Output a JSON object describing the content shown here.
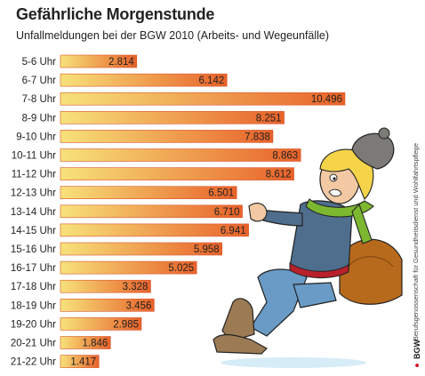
{
  "chart_data": {
    "type": "bar",
    "orientation": "horizontal",
    "title": "Gefährliche Morgenstunde",
    "subtitle": "Unfallmeldungen bei der BGW 2010 (Arbeits- und Wegeunfälle)",
    "categories": [
      "5-6 Uhr",
      "6-7 Uhr",
      "7-8 Uhr",
      "8-9 Uhr",
      "9-10 Uhr",
      "10-11 Uhr",
      "11-12 Uhr",
      "12-13 Uhr",
      "13-14 Uhr",
      "14-15 Uhr",
      "15-16 Uhr",
      "16-17 Uhr",
      "17-18 Uhr",
      "18-19 Uhr",
      "19-20 Uhr",
      "20-21 Uhr",
      "21-22 Uhr"
    ],
    "values": [
      2814,
      6142,
      10496,
      8251,
      7838,
      8863,
      8612,
      6501,
      6710,
      6941,
      5958,
      5025,
      3328,
      3456,
      2985,
      1846,
      1417
    ],
    "value_labels": [
      "2.814",
      "6.142",
      "10.496",
      "8.251",
      "7.838",
      "8.863",
      "8.612",
      "6.501",
      "6.710",
      "6.941",
      "5.958",
      "5.025",
      "3.328",
      "3.456",
      "2.985",
      "1.846",
      "1.417"
    ],
    "xlim": [
      0,
      10496
    ],
    "grid": false,
    "colors": {
      "bar_start": "#f7e27a",
      "bar_end": "#e8622a",
      "bar_edge": "#d9542a"
    }
  },
  "credit_text": "Berufsgenossenschaft für Gesundheitsdienst und Wohlfahrtspflege",
  "logo_text": "BGW"
}
